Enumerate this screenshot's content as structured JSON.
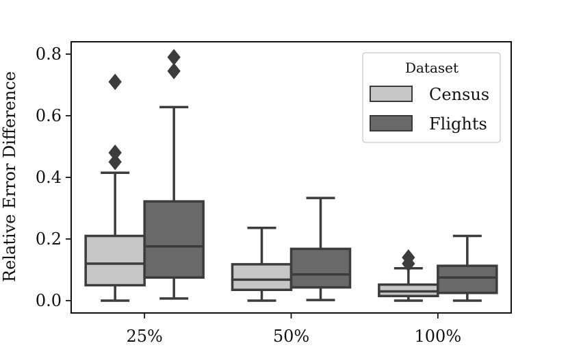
{
  "chart_data": {
    "type": "box",
    "ylabel": "Relative Error Difference",
    "xlabel": "",
    "title": "",
    "categories": [
      "25%",
      "50%",
      "100%"
    ],
    "ylim": [
      -0.04,
      0.84
    ],
    "yticks": [
      "0.0",
      "0.2",
      "0.4",
      "0.6",
      "0.8"
    ],
    "legend": {
      "title": "Dataset",
      "position": "top-right"
    },
    "series": [
      {
        "name": "Census",
        "color": "#c7c7c7",
        "boxes": [
          {
            "whislo": 0.0,
            "q1": 0.05,
            "med": 0.12,
            "q3": 0.21,
            "whishi": 0.415,
            "fliers": [
              0.45,
              0.48,
              0.71
            ]
          },
          {
            "whislo": 0.0,
            "q1": 0.035,
            "med": 0.068,
            "q3": 0.118,
            "whishi": 0.236,
            "fliers": []
          },
          {
            "whislo": 0.0,
            "q1": 0.015,
            "med": 0.03,
            "q3": 0.052,
            "whishi": 0.105,
            "fliers": [
              0.12,
              0.14
            ]
          }
        ]
      },
      {
        "name": "Flights",
        "color": "#696969",
        "boxes": [
          {
            "whislo": 0.007,
            "q1": 0.075,
            "med": 0.176,
            "q3": 0.322,
            "whishi": 0.628,
            "fliers": [
              0.745,
              0.79
            ]
          },
          {
            "whislo": 0.002,
            "q1": 0.043,
            "med": 0.085,
            "q3": 0.168,
            "whishi": 0.333,
            "fliers": []
          },
          {
            "whislo": 0.0,
            "q1": 0.025,
            "med": 0.075,
            "q3": 0.113,
            "whishi": 0.21,
            "fliers": []
          }
        ]
      }
    ]
  }
}
